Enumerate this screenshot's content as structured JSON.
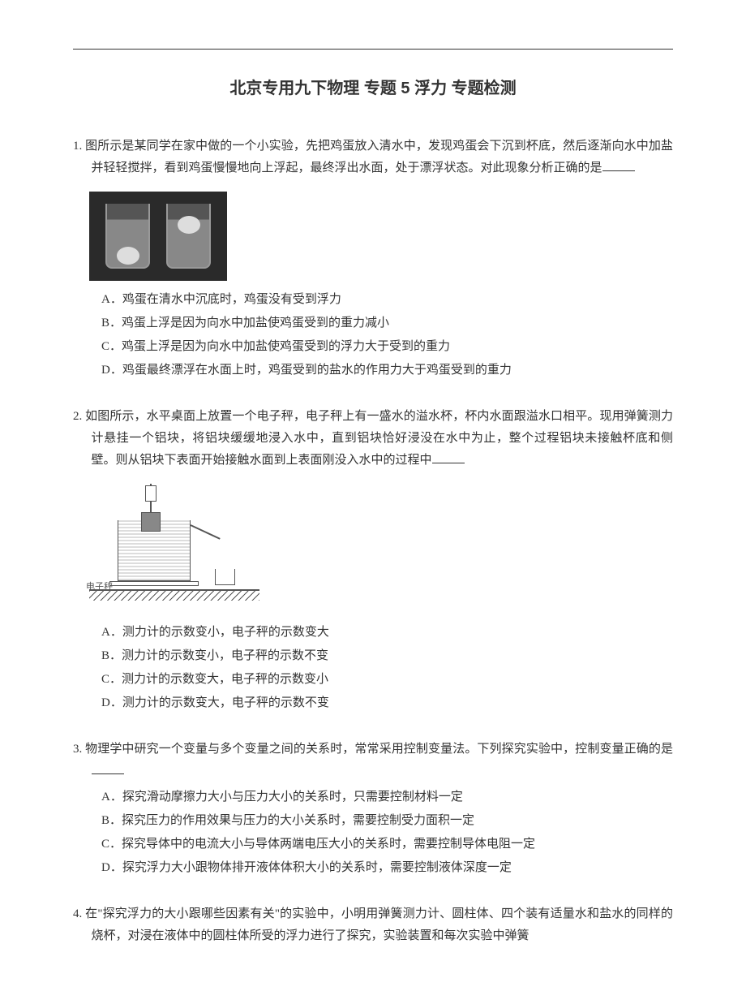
{
  "title": "北京专用九下物理 专题 5 浮力 专题检测",
  "questions": [
    {
      "number": "1.",
      "stem": "图所示是某同学在家中做的一个小实验，先把鸡蛋放入清水中，发现鸡蛋会下沉到杯底，然后逐渐向水中加盐并轻轻搅拌，看到鸡蛋慢慢地向上浮起，最终浮出水面，处于漂浮状态。对此现象分析正确的是",
      "figure": "egg-glasses",
      "options": [
        {
          "label": "A．",
          "text": "鸡蛋在清水中沉底时，鸡蛋没有受到浮力"
        },
        {
          "label": "B．",
          "text": "鸡蛋上浮是因为向水中加盐使鸡蛋受到的重力减小"
        },
        {
          "label": "C．",
          "text": "鸡蛋上浮是因为向水中加盐使鸡蛋受到的浮力大于受到的重力"
        },
        {
          "label": "D．",
          "text": "鸡蛋最终漂浮在水面上时，鸡蛋受到的盐水的作用力大于鸡蛋受到的重力"
        }
      ]
    },
    {
      "number": "2.",
      "stem": "如图所示，水平桌面上放置一个电子秤，电子秤上有一盛水的溢水杯，杯内水面跟溢水口相平。现用弹簧测力计悬挂一个铝块，将铝块缓缓地浸入水中，直到铝块恰好浸没在水中为止，整个过程铝块未接触杯底和侧壁。则从铝块下表面开始接触水面到上表面刚没入水中的过程中",
      "figure": "overflow-cup",
      "scale_label": "电子秤",
      "options": [
        {
          "label": "A．",
          "text": "测力计的示数变小，电子秤的示数变大"
        },
        {
          "label": "B．",
          "text": "测力计的示数变小，电子秤的示数不变"
        },
        {
          "label": "C．",
          "text": "测力计的示数变大，电子秤的示数变小"
        },
        {
          "label": "D．",
          "text": "测力计的示数变大，电子秤的示数不变"
        }
      ]
    },
    {
      "number": "3.",
      "stem": "物理学中研究一个变量与多个变量之间的关系时，常常采用控制变量法。下列探究实验中，控制变量正确的是",
      "figure": null,
      "options": [
        {
          "label": "A．",
          "text": "探究滑动摩擦力大小与压力大小的关系时，只需要控制材料一定"
        },
        {
          "label": "B．",
          "text": "探究压力的作用效果与压力的大小关系时，需要控制受力面积一定"
        },
        {
          "label": "C．",
          "text": "探究导体中的电流大小与导体两端电压大小的关系时，需要控制导体电阻一定"
        },
        {
          "label": "D．",
          "text": "探究浮力大小跟物体排开液体体积大小的关系时，需要控制液体深度一定"
        }
      ]
    },
    {
      "number": "4.",
      "stem_full": "在\"探究浮力的大小跟哪些因素有关\"的实验中，小明用弹簧测力计、圆柱体、四个装有适量水和盐水的同样的烧杯，对浸在液体中的圆柱体所受的浮力进行了探究，实验装置和每次实验中弹簧",
      "figure": null,
      "options": []
    }
  ]
}
